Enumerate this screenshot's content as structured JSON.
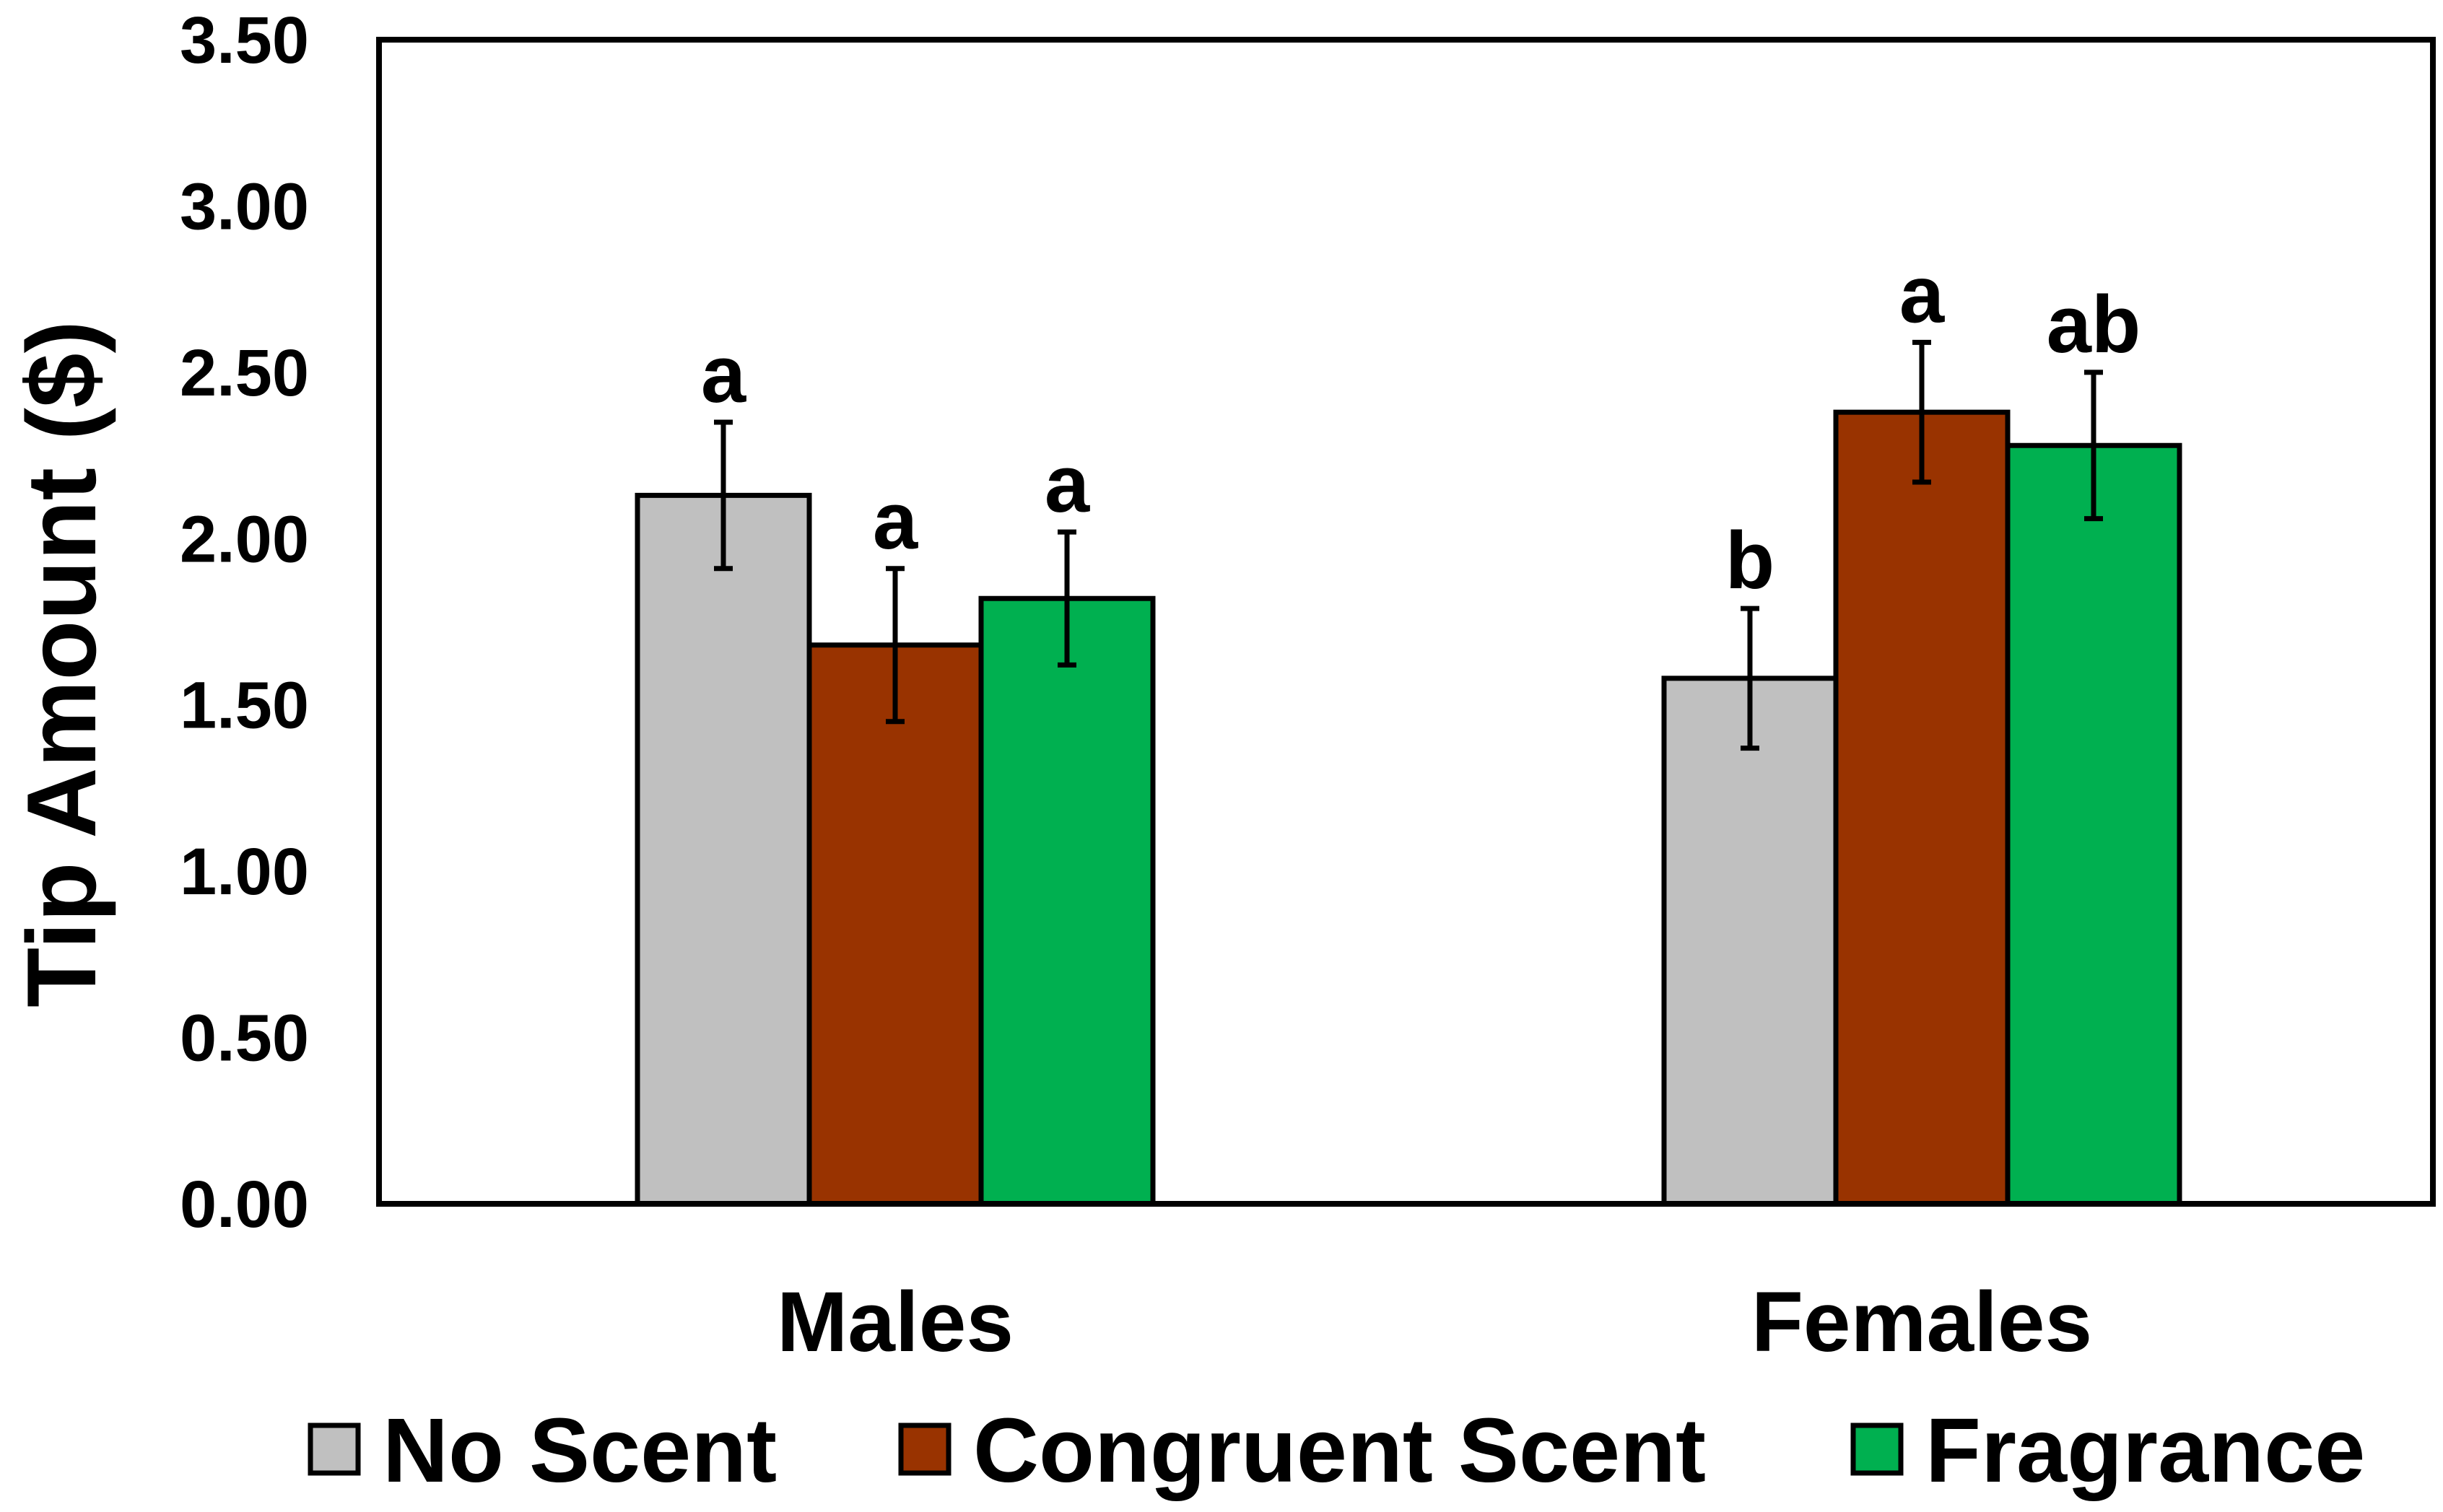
{
  "chart_data": {
    "type": "bar",
    "title": "",
    "xlabel": "",
    "ylabel": "Tip Amount ($)",
    "ylim": [
      0,
      3.5
    ],
    "yticks": [
      "0.00",
      "0.50",
      "1.00",
      "1.50",
      "2.00",
      "2.50",
      "3.00",
      "3.50"
    ],
    "ytick_values": [
      0,
      0.5,
      1.0,
      1.5,
      2.0,
      2.5,
      3.0,
      3.5
    ],
    "categories": [
      "Males",
      "Females"
    ],
    "grid": false,
    "legend_position": "bottom",
    "series": [
      {
        "name": "No Scent",
        "color": "#c0c0c0",
        "values": [
          2.13,
          1.58
        ],
        "errors": [
          0.22,
          0.21
        ],
        "significance": [
          "a",
          "b"
        ]
      },
      {
        "name": "Congruent Scent",
        "color": "#993300",
        "values": [
          1.68,
          2.38
        ],
        "errors": [
          0.23,
          0.21
        ],
        "significance": [
          "a",
          "a"
        ]
      },
      {
        "name": "Fragrance",
        "color": "#00b050",
        "values": [
          1.82,
          2.28
        ],
        "errors": [
          0.2,
          0.22
        ],
        "significance": [
          "a",
          "ab"
        ]
      }
    ]
  }
}
